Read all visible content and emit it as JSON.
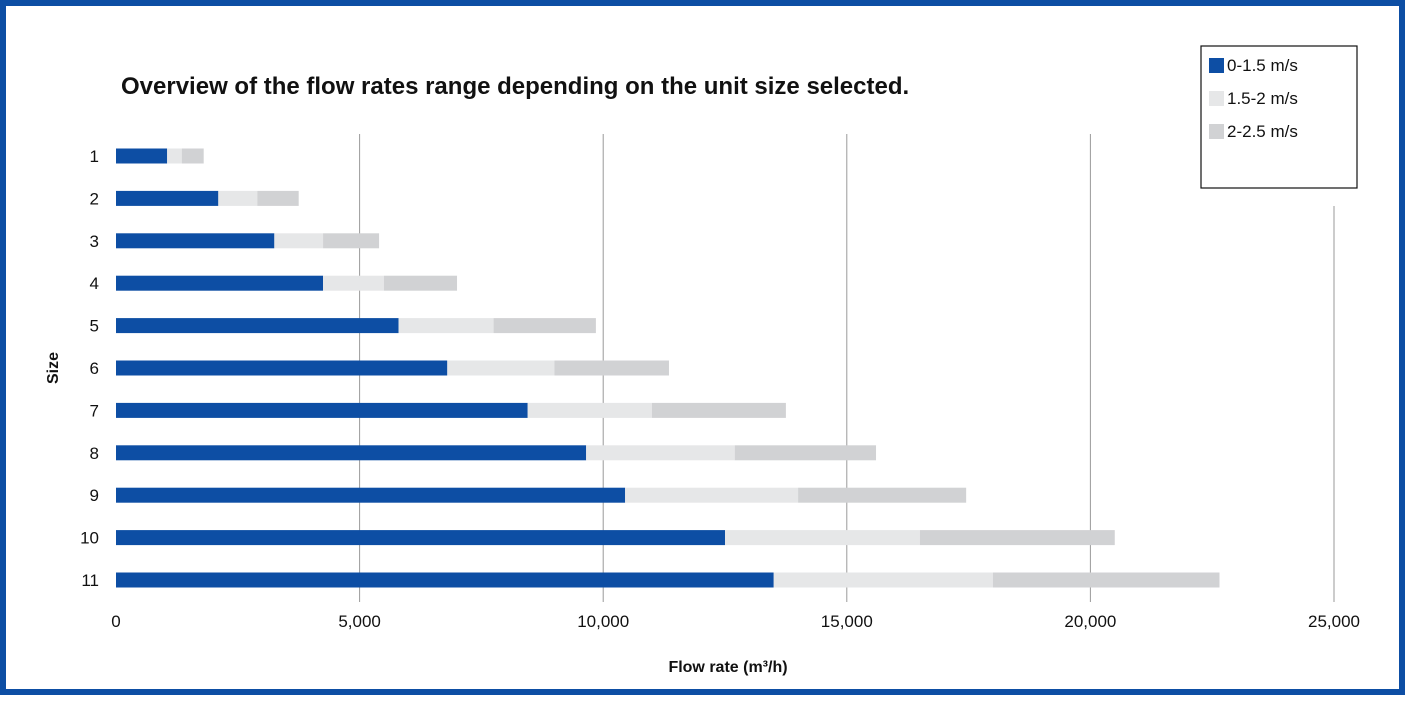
{
  "chart_data": {
    "type": "bar",
    "orientation": "horizontal",
    "stacked": true,
    "title": "Overview of the flow rates range depending on the unit size selected.",
    "xlabel": "Flow rate (m³/h)",
    "ylabel": "Size",
    "categories": [
      "1",
      "2",
      "3",
      "4",
      "5",
      "6",
      "7",
      "8",
      "9",
      "10",
      "11"
    ],
    "xlim": [
      0,
      25000
    ],
    "xticks": [
      "0",
      "5,000",
      "10,000",
      "15,000",
      "20,000",
      "25,000"
    ],
    "xtick_values": [
      0,
      5000,
      10000,
      15000,
      20000,
      25000
    ],
    "grid": "vertical",
    "legend_position": "top-right",
    "series": [
      {
        "name": "0-1.5 m/s",
        "color": "#0d4ea4",
        "values": [
          1050,
          2100,
          3250,
          4250,
          5800,
          6800,
          8450,
          9650,
          10450,
          12500,
          13500
        ]
      },
      {
        "name": "1.5-2 m/s",
        "color": "#e6e7e8",
        "values": [
          300,
          800,
          1000,
          1250,
          1950,
          2200,
          2550,
          3050,
          3550,
          4000,
          4500
        ]
      },
      {
        "name": "2-2.5 m/s",
        "color": "#d1d2d4",
        "values": [
          450,
          850,
          1150,
          1500,
          2100,
          2350,
          2750,
          2900,
          3450,
          4000,
          4650
        ]
      }
    ]
  }
}
